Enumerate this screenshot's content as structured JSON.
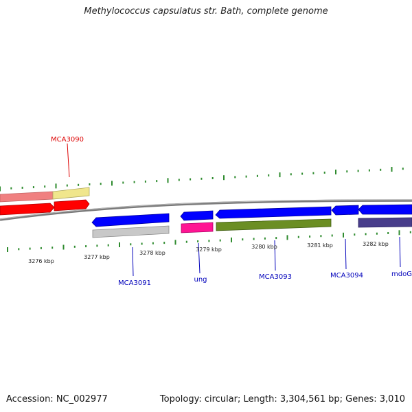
{
  "header": {
    "title": "Methylococcus capsulatus str. Bath, complete genome"
  },
  "footer": {
    "accession": "Accession: NC_002977",
    "summary": "Topology: circular; Length: 3,304,561 bp; Genes: 3,010"
  },
  "colors": {
    "backbone": "#8c8c8c",
    "tick": "#2e8b2e",
    "label_red": "#dd0000",
    "label_blue": "#0000bb"
  },
  "scale_labels": [
    "3276 kbp",
    "3277 kbp",
    "3278 kbp",
    "3279 kbp",
    "3280 kbp",
    "3281 kbp",
    "3282 kbp"
  ],
  "gene_labels": [
    {
      "name": "MCA3090",
      "color": "#dd0000"
    },
    {
      "name": "MCA3091",
      "color": "#0000bb"
    },
    {
      "name": "ung",
      "color": "#0000bb"
    },
    {
      "name": "MCA3093",
      "color": "#0000bb"
    },
    {
      "name": "MCA3094",
      "color": "#0000bb"
    },
    {
      "name": "mdoG",
      "color": "#0000bb"
    }
  ]
}
